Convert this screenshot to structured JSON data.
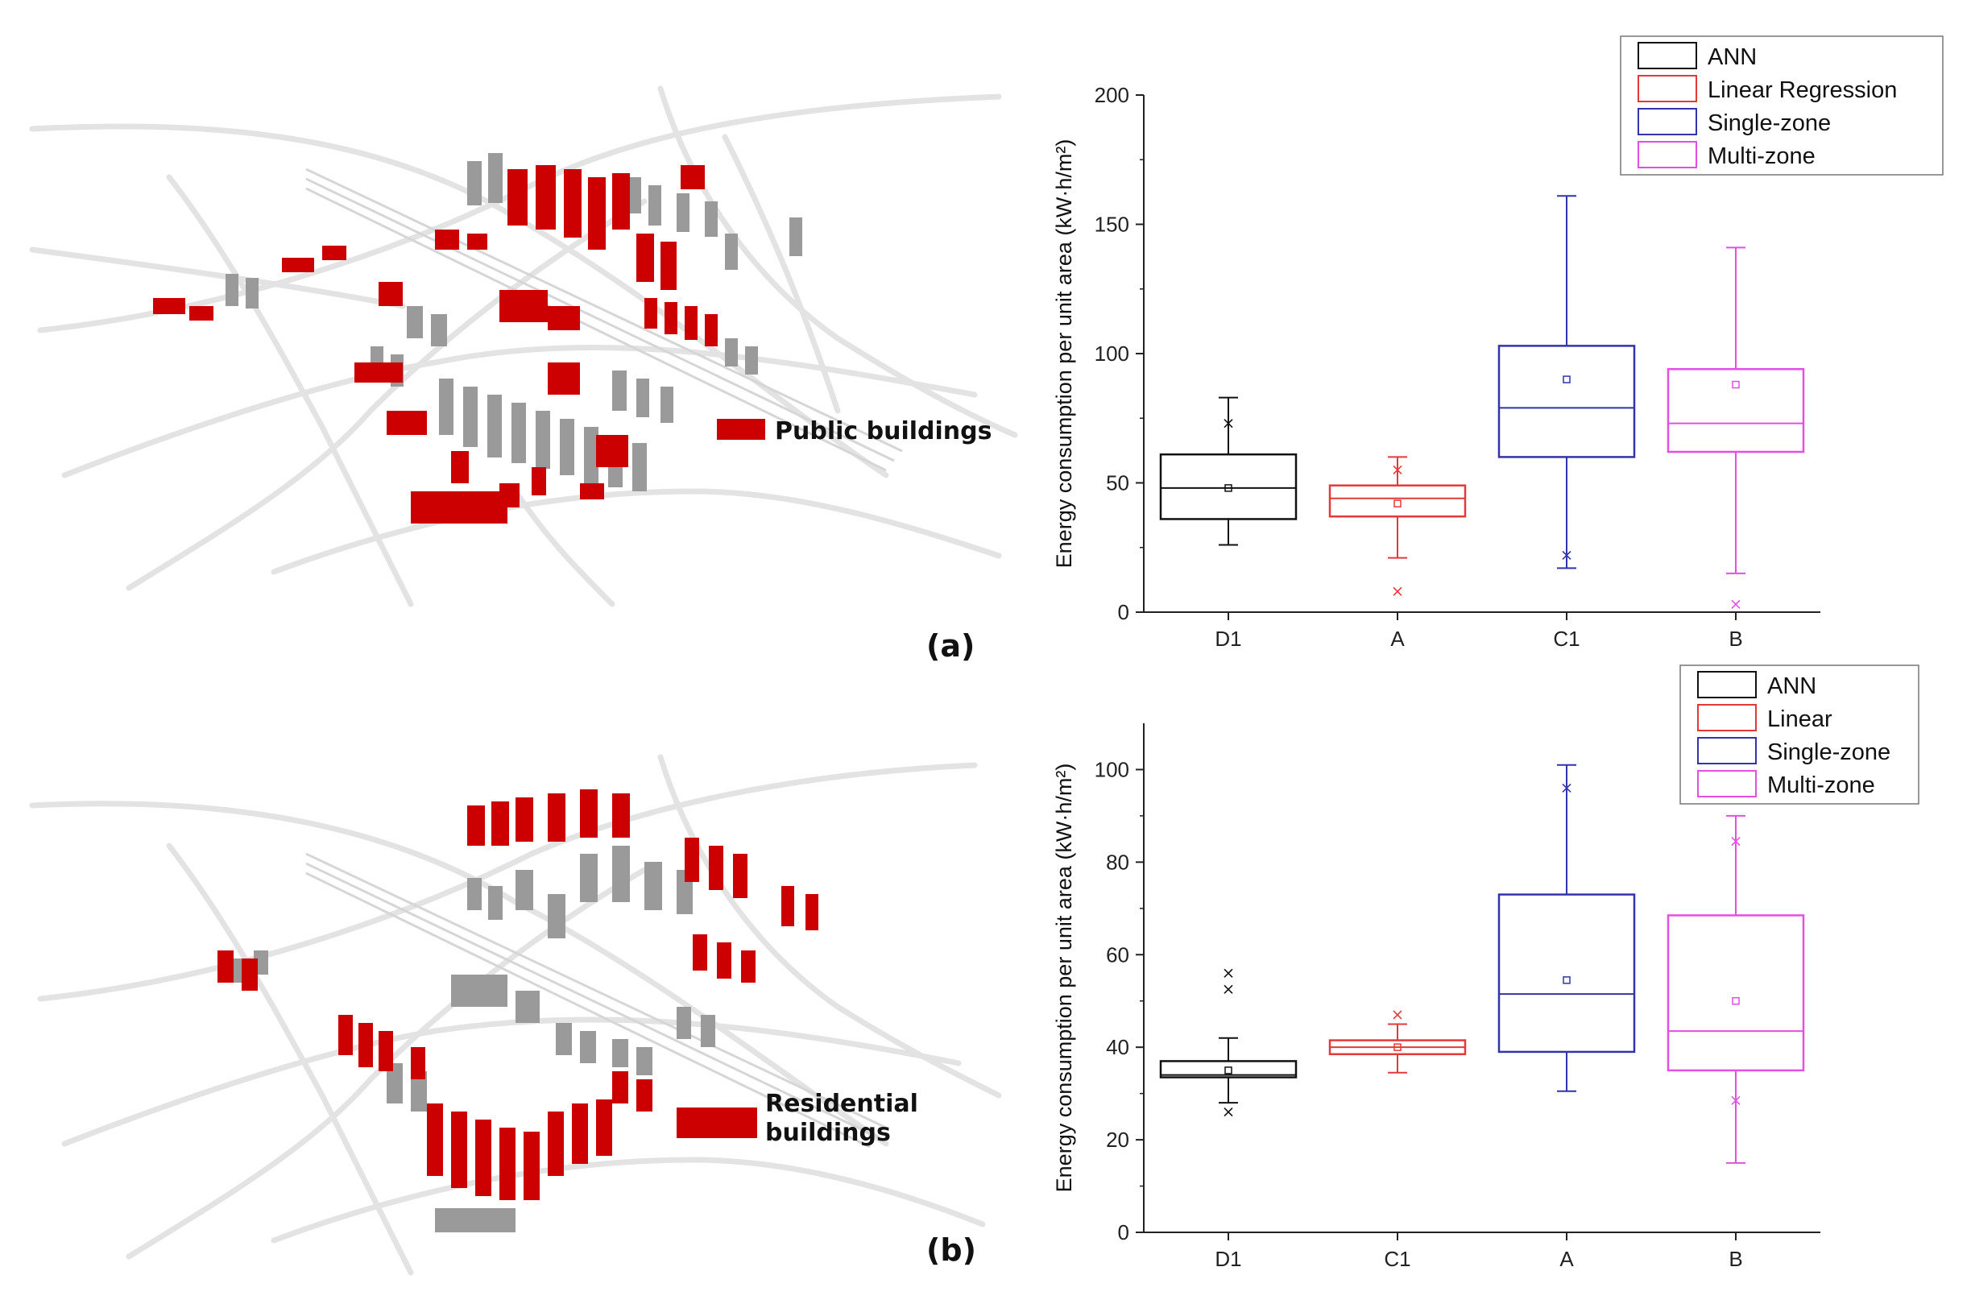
{
  "panel_labels": {
    "a": "(a)",
    "b": "(b)"
  },
  "maps": {
    "top": {
      "legend": "Public buildings",
      "highlight_color": "#cc0000"
    },
    "bottom": {
      "legend_line1": "Residential",
      "legend_line2": "buildings",
      "highlight_color": "#cc0000"
    }
  },
  "chart_data": [
    {
      "type": "box",
      "ylabel": "Energy consumption per unit area (kW·h/m²)",
      "ylim": [
        0,
        200
      ],
      "yticks": [
        0,
        50,
        100,
        150,
        200
      ],
      "categories": [
        "D1",
        "A",
        "C1",
        "B"
      ],
      "legend": [
        "ANN",
        "Linear Regression",
        "Single-zone",
        "Multi-zone"
      ],
      "colors": [
        "#111111",
        "#e23a3a",
        "#3333aa",
        "#e34fe3"
      ],
      "boxes": [
        {
          "cat": "D1",
          "min": 26,
          "q1": 36,
          "median": 48,
          "q3": 61,
          "max": 83,
          "mean": 48,
          "outliers": [
            73
          ]
        },
        {
          "cat": "A",
          "min": 21,
          "q1": 37,
          "median": 44,
          "q3": 49,
          "max": 60,
          "mean": 42,
          "outliers": [
            8,
            55
          ]
        },
        {
          "cat": "C1",
          "min": 17,
          "q1": 60,
          "median": 79,
          "q3": 103,
          "max": 161,
          "mean": 90,
          "outliers": [
            22
          ]
        },
        {
          "cat": "B",
          "min": 15,
          "q1": 62,
          "median": 73,
          "q3": 94,
          "max": 141,
          "mean": 88,
          "outliers": [
            3
          ]
        }
      ]
    },
    {
      "type": "box",
      "ylabel": "Energy consumption per unit area (kW·h/m²)",
      "ylim": [
        0,
        110
      ],
      "yticks": [
        0,
        20,
        40,
        60,
        80,
        100
      ],
      "categories": [
        "D1",
        "C1",
        "A",
        "B"
      ],
      "legend": [
        "ANN",
        "Linear",
        "Single-zone",
        "Multi-zone"
      ],
      "colors": [
        "#111111",
        "#e23a3a",
        "#3333aa",
        "#e34fe3"
      ],
      "boxes": [
        {
          "cat": "D1",
          "min": 28,
          "q1": 33.5,
          "median": 34,
          "q3": 37,
          "max": 42,
          "mean": 35,
          "outliers": [
            26,
            52.5,
            56
          ]
        },
        {
          "cat": "C1",
          "min": 34.5,
          "q1": 38.5,
          "median": 40,
          "q3": 41.5,
          "max": 45,
          "mean": 40,
          "outliers": [
            47
          ]
        },
        {
          "cat": "A",
          "min": 30.5,
          "q1": 39,
          "median": 51.5,
          "q3": 73,
          "max": 101,
          "mean": 54.5,
          "outliers": [
            96
          ]
        },
        {
          "cat": "B",
          "min": 15,
          "q1": 35,
          "median": 43.5,
          "q3": 68.5,
          "max": 90,
          "mean": 50,
          "outliers": [
            28.5,
            84.5
          ]
        }
      ]
    }
  ]
}
